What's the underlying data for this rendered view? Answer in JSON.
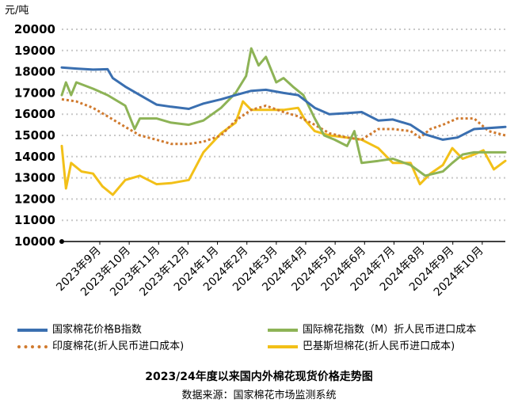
{
  "chart_data": {
    "type": "line",
    "title": "2023/24年度以来国内外棉花现货价格走势图",
    "subtitle": "数据来源：国家棉花市场监测系统",
    "ylabel": "元/吨",
    "ylim": [
      10000,
      20000
    ],
    "yticks": [
      "20000",
      "19000",
      "18000",
      "17000",
      "16000",
      "15000",
      "14000",
      "13000",
      "12000",
      "11000",
      "10000"
    ],
    "xticks": [
      "2023年9月",
      "2023年10月",
      "2023年11月",
      "2023年12月",
      "2024年1月",
      "2024年2月",
      "2024年3月",
      "2024年4月",
      "2024年5月",
      "2024年6月",
      "2024年7月",
      "2024年8月",
      "2024年9月",
      "2024年10月"
    ],
    "x_start": "2023-09-01",
    "x_end": "2024-10-31",
    "grid": "horizontal dotted",
    "legend_position": "bottom",
    "series": [
      {
        "name": "国家棉花价格B指数",
        "color": "#3a6fb0",
        "style": "solid",
        "points": [
          [
            "2023-09-01",
            18200
          ],
          [
            "2023-09-15",
            18150
          ],
          [
            "2023-10-01",
            18100
          ],
          [
            "2023-10-15",
            18120
          ],
          [
            "2023-10-20",
            17700
          ],
          [
            "2023-11-01",
            17300
          ],
          [
            "2023-11-15",
            16900
          ],
          [
            "2023-12-01",
            16450
          ],
          [
            "2023-12-15",
            16350
          ],
          [
            "2024-01-01",
            16250
          ],
          [
            "2024-01-15",
            16500
          ],
          [
            "2024-02-01",
            16700
          ],
          [
            "2024-02-15",
            16900
          ],
          [
            "2024-03-01",
            17100
          ],
          [
            "2024-03-15",
            17150
          ],
          [
            "2024-04-01",
            17000
          ],
          [
            "2024-04-15",
            16900
          ],
          [
            "2024-05-01",
            16300
          ],
          [
            "2024-05-15",
            16000
          ],
          [
            "2024-06-01",
            16050
          ],
          [
            "2024-06-15",
            16100
          ],
          [
            "2024-07-01",
            15700
          ],
          [
            "2024-07-15",
            15750
          ],
          [
            "2024-08-01",
            15500
          ],
          [
            "2024-08-15",
            15050
          ],
          [
            "2024-09-01",
            14800
          ],
          [
            "2024-09-15",
            14900
          ],
          [
            "2024-10-01",
            15300
          ],
          [
            "2024-10-31",
            15400
          ]
        ]
      },
      {
        "name": "国际棉花指数（M）折人民币进口成本",
        "color": "#8db356",
        "style": "solid",
        "points": [
          [
            "2023-09-01",
            16900
          ],
          [
            "2023-09-05",
            17500
          ],
          [
            "2023-09-10",
            16900
          ],
          [
            "2023-09-15",
            17500
          ],
          [
            "2023-10-01",
            17200
          ],
          [
            "2023-10-15",
            16900
          ],
          [
            "2023-11-01",
            16400
          ],
          [
            "2023-11-10",
            15300
          ],
          [
            "2023-11-15",
            15800
          ],
          [
            "2023-12-01",
            15800
          ],
          [
            "2023-12-15",
            15600
          ],
          [
            "2024-01-01",
            15500
          ],
          [
            "2024-01-15",
            15700
          ],
          [
            "2024-02-01",
            16300
          ],
          [
            "2024-02-15",
            17000
          ],
          [
            "2024-02-25",
            17800
          ],
          [
            "2024-03-01",
            19100
          ],
          [
            "2024-03-08",
            18300
          ],
          [
            "2024-03-15",
            18700
          ],
          [
            "2024-03-25",
            17500
          ],
          [
            "2024-04-01",
            17700
          ],
          [
            "2024-04-10",
            17300
          ],
          [
            "2024-04-20",
            16900
          ],
          [
            "2024-05-01",
            15800
          ],
          [
            "2024-05-10",
            15000
          ],
          [
            "2024-05-20",
            14800
          ],
          [
            "2024-06-01",
            14500
          ],
          [
            "2024-06-08",
            15200
          ],
          [
            "2024-06-15",
            13700
          ],
          [
            "2024-07-01",
            13800
          ],
          [
            "2024-07-15",
            13900
          ],
          [
            "2024-08-01",
            13600
          ],
          [
            "2024-08-15",
            13100
          ],
          [
            "2024-09-01",
            13300
          ],
          [
            "2024-09-10",
            13700
          ],
          [
            "2024-09-20",
            14100
          ],
          [
            "2024-10-01",
            14200
          ],
          [
            "2024-10-31",
            14200
          ]
        ]
      },
      {
        "name": "印度棉花(折人民币进口成本)",
        "color": "#d07a2e",
        "style": "dotted",
        "points": [
          [
            "2023-09-01",
            16700
          ],
          [
            "2023-09-15",
            16600
          ],
          [
            "2023-10-01",
            16300
          ],
          [
            "2023-10-15",
            15900
          ],
          [
            "2023-11-01",
            15400
          ],
          [
            "2023-11-15",
            15000
          ],
          [
            "2023-12-01",
            14800
          ],
          [
            "2023-12-15",
            14600
          ],
          [
            "2024-01-01",
            14600
          ],
          [
            "2024-01-15",
            14700
          ],
          [
            "2024-02-01",
            15000
          ],
          [
            "2024-02-15",
            15700
          ],
          [
            "2024-03-01",
            16200
          ],
          [
            "2024-03-15",
            16400
          ],
          [
            "2024-04-01",
            16100
          ],
          [
            "2024-04-15",
            15900
          ],
          [
            "2024-05-01",
            15500
          ],
          [
            "2024-05-15",
            15100
          ],
          [
            "2024-06-01",
            14900
          ],
          [
            "2024-06-15",
            14800
          ],
          [
            "2024-07-01",
            15300
          ],
          [
            "2024-07-15",
            15300
          ],
          [
            "2024-08-01",
            15200
          ],
          [
            "2024-08-10",
            14900
          ],
          [
            "2024-08-20",
            15300
          ],
          [
            "2024-09-01",
            15500
          ],
          [
            "2024-09-15",
            15800
          ],
          [
            "2024-10-01",
            15800
          ],
          [
            "2024-10-15",
            15200
          ],
          [
            "2024-10-31",
            15000
          ]
        ]
      },
      {
        "name": "巴基斯坦棉花(折人民币进口成本)",
        "color": "#f2c018",
        "style": "solid",
        "points": [
          [
            "2023-09-01",
            14500
          ],
          [
            "2023-09-05",
            12500
          ],
          [
            "2023-09-10",
            13700
          ],
          [
            "2023-09-20",
            13300
          ],
          [
            "2023-10-01",
            13200
          ],
          [
            "2023-10-10",
            12600
          ],
          [
            "2023-10-20",
            12200
          ],
          [
            "2023-11-01",
            12900
          ],
          [
            "2023-11-15",
            13100
          ],
          [
            "2023-12-01",
            12700
          ],
          [
            "2023-12-15",
            12750
          ],
          [
            "2024-01-01",
            12900
          ],
          [
            "2024-01-15",
            14200
          ],
          [
            "2024-02-01",
            15100
          ],
          [
            "2024-02-15",
            15600
          ],
          [
            "2024-02-22",
            16600
          ],
          [
            "2024-03-01",
            16200
          ],
          [
            "2024-03-15",
            16200
          ],
          [
            "2024-04-01",
            16200
          ],
          [
            "2024-04-15",
            16300
          ],
          [
            "2024-04-22",
            15700
          ],
          [
            "2024-05-01",
            15200
          ],
          [
            "2024-05-15",
            15000
          ],
          [
            "2024-06-01",
            14900
          ],
          [
            "2024-06-15",
            14800
          ],
          [
            "2024-07-01",
            14400
          ],
          [
            "2024-07-15",
            13700
          ],
          [
            "2024-08-01",
            13700
          ],
          [
            "2024-08-10",
            12700
          ],
          [
            "2024-08-20",
            13200
          ],
          [
            "2024-09-01",
            13600
          ],
          [
            "2024-09-10",
            14400
          ],
          [
            "2024-09-20",
            13900
          ],
          [
            "2024-10-01",
            14100
          ],
          [
            "2024-10-10",
            14300
          ],
          [
            "2024-10-20",
            13400
          ],
          [
            "2024-10-31",
            13800
          ]
        ]
      }
    ]
  }
}
